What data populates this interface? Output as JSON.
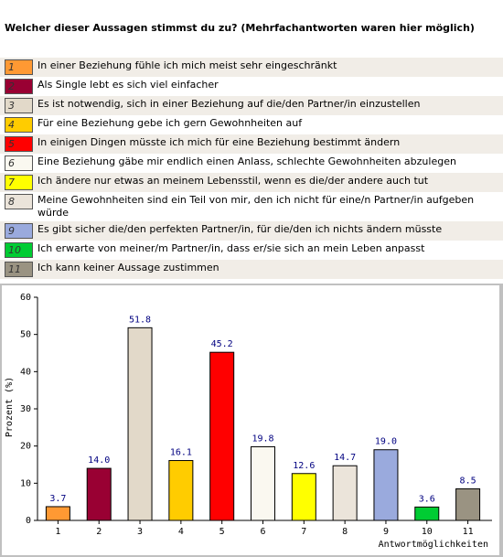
{
  "chart_data": {
    "type": "bar",
    "title": "Welcher dieser Aussagen stimmst du zu? (Mehrfachantworten waren hier möglich)",
    "descriptions": [
      "In einer Beziehung fühle ich mich meist sehr eingeschränkt",
      "Als Single lebt es sich viel einfacher",
      "Es ist notwendig, sich in einer Beziehung auf die/den Partner/in einzustellen",
      "Für eine Beziehung gebe ich gern Gewohnheiten auf",
      "In einigen Dingen müsste ich mich für eine Beziehung bestimmt ändern",
      "Eine Beziehung gäbe mir endlich einen Anlass, schlechte Gewohnheiten abzulegen",
      "Ich ändere nur etwas an meinem Lebensstil, wenn es die/der andere auch tut",
      "Meine Gewohnheiten sind ein Teil von mir, den ich nicht für eine/n Partner/in aufgeben würde",
      "Es gibt sicher die/den perfekten Partner/in, für die/den ich nichts ändern müsste",
      "Ich erwarte von meiner/m Partner/in, dass er/sie sich an mein Leben anpasst",
      "Ich kann keiner Aussage zustimmen"
    ],
    "categories": [
      "1",
      "2",
      "3",
      "4",
      "5",
      "6",
      "7",
      "8",
      "9",
      "10",
      "11"
    ],
    "values": [
      3.7,
      14.0,
      51.8,
      16.1,
      45.2,
      19.8,
      12.6,
      14.7,
      19.0,
      3.6,
      8.5
    ],
    "value_labels": [
      "3.7",
      "14.0",
      "51.8",
      "16.1",
      "45.2",
      "19.8",
      "12.6",
      "14.7",
      "19.0",
      "3.6",
      "8.5"
    ],
    "colors": [
      "#ff9933",
      "#990033",
      "#e2d9c9",
      "#ffcc00",
      "#ff0000",
      "#faf8f0",
      "#ffff00",
      "#ebe4da",
      "#9aaadd",
      "#00cc33",
      "#9a9382"
    ],
    "y_label": "Prozent (%)",
    "x_label": "Antwortmöglichkeiten",
    "ylim": [
      0,
      60
    ],
    "yticks": [
      0,
      10,
      20,
      30,
      40,
      50,
      60
    ]
  }
}
